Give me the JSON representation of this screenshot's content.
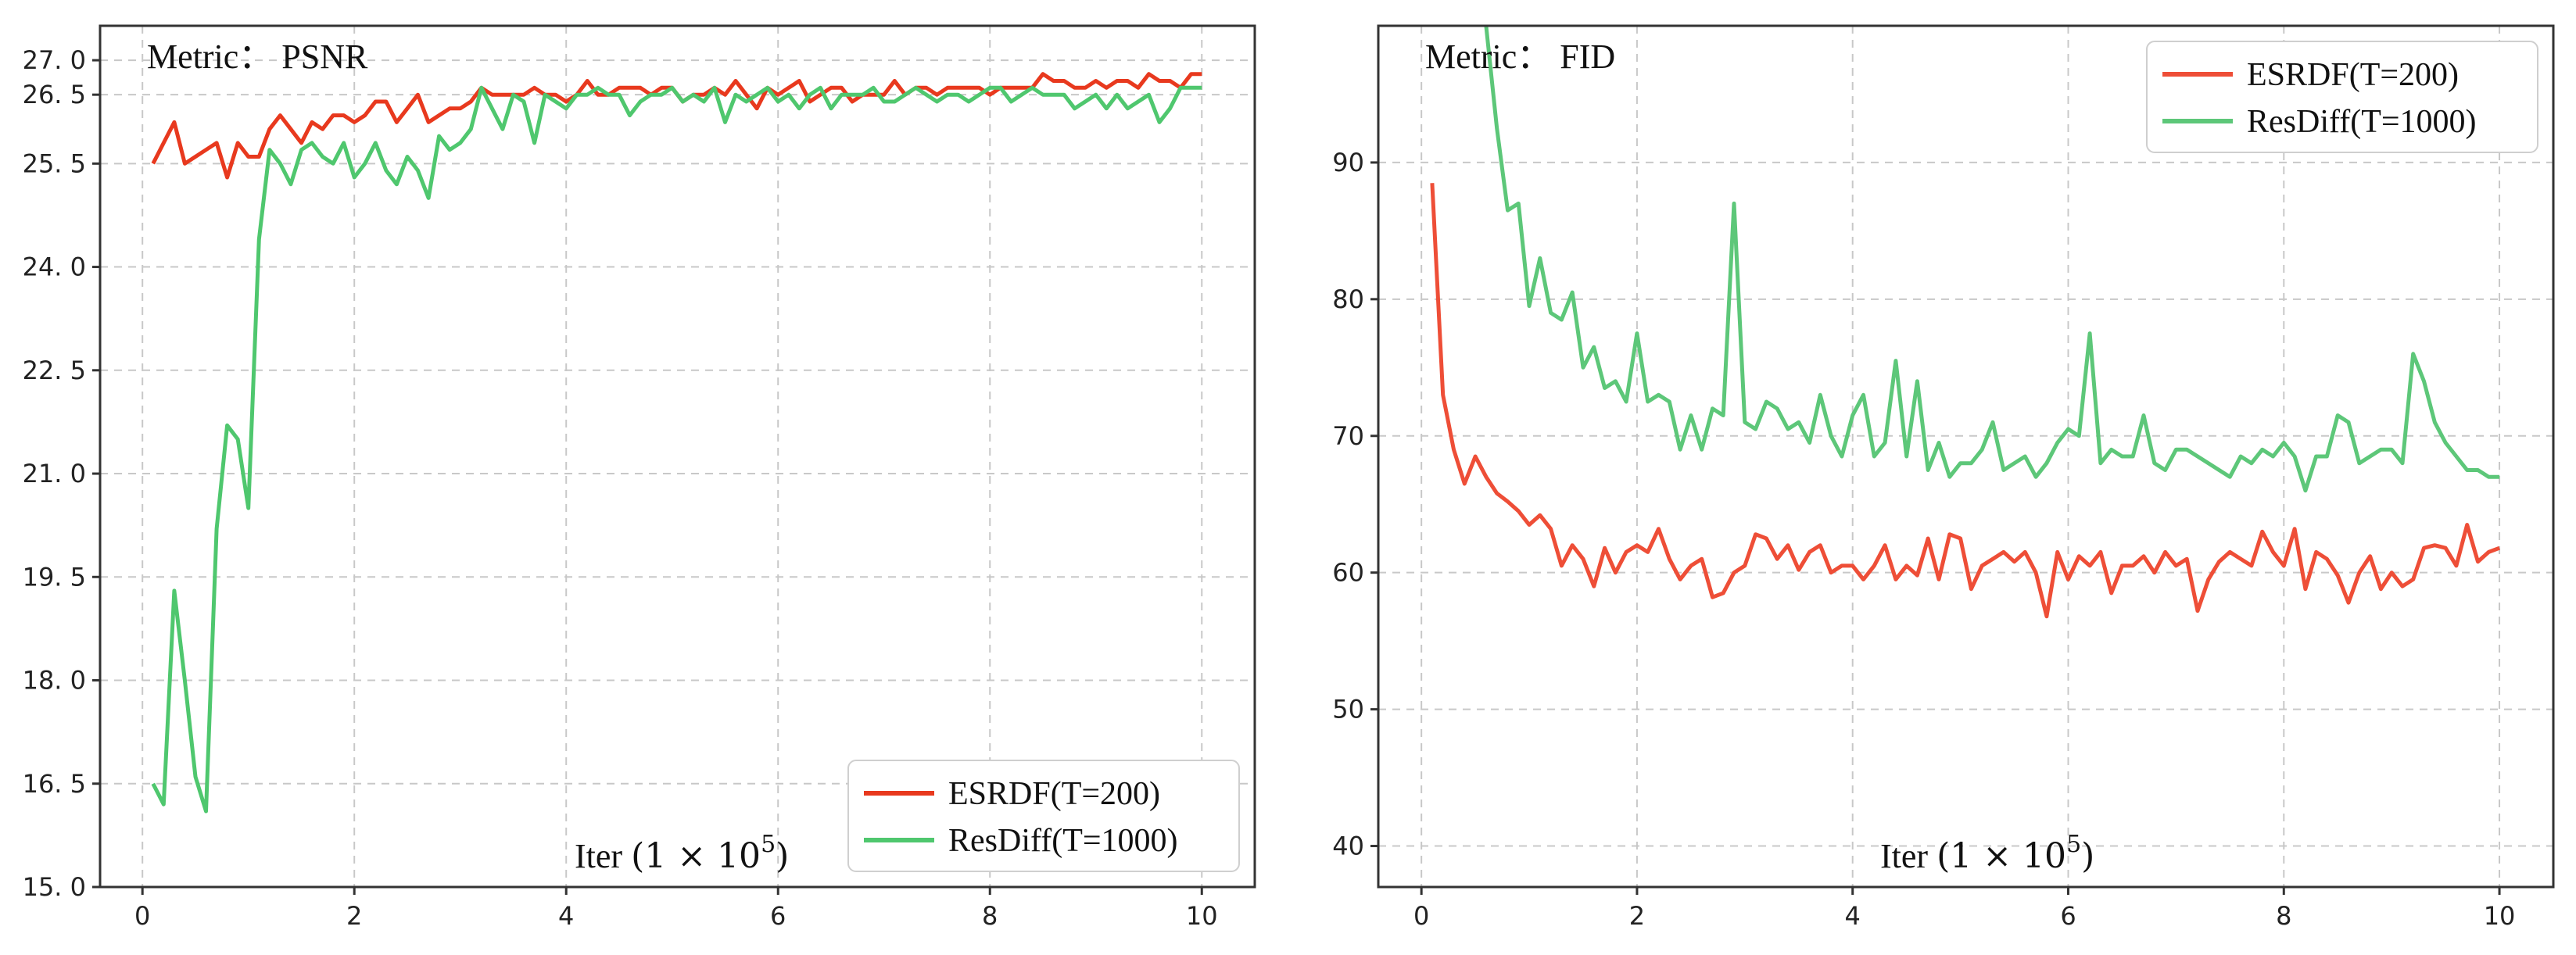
{
  "chart_data": [
    {
      "type": "line",
      "annotation": "Metric： PSNR",
      "xlabel_text": "Iter ",
      "xlabel_math": "(1 × 10",
      "xlabel_exp": "5",
      "xlabel_close": ")",
      "xlim": [
        -0.4,
        10.5
      ],
      "ylim": [
        15.0,
        27.5
      ],
      "xticks": [
        0,
        2,
        4,
        6,
        8,
        10
      ],
      "yticks": [
        15.0,
        16.5,
        18.0,
        19.5,
        21.0,
        22.5,
        24.0,
        25.5,
        26.5,
        27.0
      ],
      "ytick_labels": [
        "15. 0",
        "16. 5",
        "18. 0",
        "19. 5",
        "21. 0",
        "22. 5",
        "24. 0",
        "25. 5",
        "26. 5",
        "27. 0"
      ],
      "grid": true,
      "legend_position": "lower-right",
      "series": [
        {
          "name": "ESRDF(T=200)",
          "color": "#e8391e",
          "x": [
            0.1,
            0.2,
            0.3,
            0.4,
            0.5,
            0.6,
            0.7,
            0.8,
            0.9,
            1.0,
            1.1,
            1.2,
            1.3,
            1.4,
            1.5,
            1.6,
            1.7,
            1.8,
            1.9,
            2.0,
            2.1,
            2.2,
            2.3,
            2.4,
            2.5,
            2.6,
            2.7,
            2.8,
            2.9,
            3.0,
            3.1,
            3.2,
            3.3,
            3.4,
            3.5,
            3.6,
            3.7,
            3.8,
            3.9,
            4.0,
            4.1,
            4.2,
            4.3,
            4.4,
            4.5,
            4.6,
            4.7,
            4.8,
            4.9,
            5.0,
            5.1,
            5.2,
            5.3,
            5.4,
            5.5,
            5.6,
            5.7,
            5.8,
            5.9,
            6.0,
            6.1,
            6.2,
            6.3,
            6.4,
            6.5,
            6.6,
            6.7,
            6.8,
            6.9,
            7.0,
            7.1,
            7.2,
            7.3,
            7.4,
            7.5,
            7.6,
            7.7,
            7.8,
            7.9,
            8.0,
            8.1,
            8.2,
            8.3,
            8.4,
            8.5,
            8.6,
            8.7,
            8.8,
            8.9,
            9.0,
            9.1,
            9.2,
            9.3,
            9.4,
            9.5,
            9.6,
            9.7,
            9.8,
            9.9,
            10.0
          ],
          "values": [
            25.5,
            25.8,
            26.1,
            25.5,
            25.6,
            25.7,
            25.8,
            25.3,
            25.8,
            25.6,
            25.6,
            26.0,
            26.2,
            26.0,
            25.8,
            26.1,
            26.0,
            26.2,
            26.2,
            26.1,
            26.2,
            26.4,
            26.4,
            26.1,
            26.3,
            26.5,
            26.1,
            26.2,
            26.3,
            26.3,
            26.4,
            26.6,
            26.5,
            26.5,
            26.5,
            26.5,
            26.6,
            26.5,
            26.5,
            26.4,
            26.5,
            26.7,
            26.5,
            26.5,
            26.6,
            26.6,
            26.6,
            26.5,
            26.6,
            26.6,
            26.4,
            26.5,
            26.5,
            26.6,
            26.5,
            26.7,
            26.5,
            26.3,
            26.6,
            26.5,
            26.6,
            26.7,
            26.4,
            26.5,
            26.6,
            26.6,
            26.4,
            26.5,
            26.5,
            26.5,
            26.7,
            26.5,
            26.6,
            26.6,
            26.5,
            26.6,
            26.6,
            26.6,
            26.6,
            26.5,
            26.6,
            26.6,
            26.6,
            26.6,
            26.8,
            26.7,
            26.7,
            26.6,
            26.6,
            26.7,
            26.6,
            26.7,
            26.7,
            26.6,
            26.8,
            26.7,
            26.7,
            26.6,
            26.8,
            26.8
          ]
        },
        {
          "name": "ResDiff(T=1000)",
          "color": "#4fc76e",
          "x": [
            0.1,
            0.2,
            0.3,
            0.4,
            0.5,
            0.6,
            0.7,
            0.8,
            0.9,
            1.0,
            1.1,
            1.2,
            1.3,
            1.4,
            1.5,
            1.6,
            1.7,
            1.8,
            1.9,
            2.0,
            2.1,
            2.2,
            2.3,
            2.4,
            2.5,
            2.6,
            2.7,
            2.8,
            2.9,
            3.0,
            3.1,
            3.2,
            3.3,
            3.4,
            3.5,
            3.6,
            3.7,
            3.8,
            3.9,
            4.0,
            4.1,
            4.2,
            4.3,
            4.4,
            4.5,
            4.6,
            4.7,
            4.8,
            4.9,
            5.0,
            5.1,
            5.2,
            5.3,
            5.4,
            5.5,
            5.6,
            5.7,
            5.8,
            5.9,
            6.0,
            6.1,
            6.2,
            6.3,
            6.4,
            6.5,
            6.6,
            6.7,
            6.8,
            6.9,
            7.0,
            7.1,
            7.2,
            7.3,
            7.4,
            7.5,
            7.6,
            7.7,
            7.8,
            7.9,
            8.0,
            8.1,
            8.2,
            8.3,
            8.4,
            8.5,
            8.6,
            8.7,
            8.8,
            8.9,
            9.0,
            9.1,
            9.2,
            9.3,
            9.4,
            9.5,
            9.6,
            9.7,
            9.8,
            9.9,
            10.0
          ],
          "values": [
            16.5,
            16.2,
            19.3,
            18.0,
            16.6,
            16.1,
            20.2,
            21.7,
            21.5,
            20.5,
            24.4,
            25.7,
            25.5,
            25.2,
            25.7,
            25.8,
            25.6,
            25.5,
            25.8,
            25.3,
            25.5,
            25.8,
            25.4,
            25.2,
            25.6,
            25.4,
            25.0,
            25.9,
            25.7,
            25.8,
            26.0,
            26.6,
            26.3,
            26.0,
            26.5,
            26.4,
            25.8,
            26.5,
            26.4,
            26.3,
            26.5,
            26.5,
            26.6,
            26.5,
            26.5,
            26.2,
            26.4,
            26.5,
            26.5,
            26.6,
            26.4,
            26.5,
            26.4,
            26.6,
            26.1,
            26.5,
            26.4,
            26.5,
            26.6,
            26.4,
            26.5,
            26.3,
            26.5,
            26.6,
            26.3,
            26.5,
            26.5,
            26.5,
            26.6,
            26.4,
            26.4,
            26.5,
            26.6,
            26.5,
            26.4,
            26.5,
            26.5,
            26.4,
            26.5,
            26.6,
            26.6,
            26.4,
            26.5,
            26.6,
            26.5,
            26.5,
            26.5,
            26.3,
            26.4,
            26.5,
            26.3,
            26.5,
            26.3,
            26.4,
            26.5,
            26.1,
            26.3,
            26.6,
            26.6,
            26.6
          ]
        }
      ]
    },
    {
      "type": "line",
      "annotation": "Metric： FID",
      "xlabel_text": "Iter ",
      "xlabel_math": "(1 × 10",
      "xlabel_exp": "5",
      "xlabel_close": ")",
      "xlim": [
        -0.4,
        10.5
      ],
      "ylim": [
        37,
        100
      ],
      "xticks": [
        0,
        2,
        4,
        6,
        8,
        10
      ],
      "yticks": [
        40,
        50,
        60,
        70,
        80,
        90
      ],
      "ytick_labels": [
        "40",
        "50",
        "60",
        "70",
        "80",
        "90"
      ],
      "grid": true,
      "legend_position": "upper-right",
      "series": [
        {
          "name": "ESRDF(T=200)",
          "color": "#ee4e37",
          "x": [
            0.1,
            0.2,
            0.3,
            0.4,
            0.5,
            0.6,
            0.7,
            0.8,
            0.9,
            1.0,
            1.1,
            1.2,
            1.3,
            1.4,
            1.5,
            1.6,
            1.7,
            1.8,
            1.9,
            2.0,
            2.1,
            2.2,
            2.3,
            2.4,
            2.5,
            2.6,
            2.7,
            2.8,
            2.9,
            3.0,
            3.1,
            3.2,
            3.3,
            3.4,
            3.5,
            3.6,
            3.7,
            3.8,
            3.9,
            4.0,
            4.1,
            4.2,
            4.3,
            4.4,
            4.5,
            4.6,
            4.7,
            4.8,
            4.9,
            5.0,
            5.1,
            5.2,
            5.3,
            5.4,
            5.5,
            5.6,
            5.7,
            5.8,
            5.9,
            6.0,
            6.1,
            6.2,
            6.3,
            6.4,
            6.5,
            6.6,
            6.7,
            6.8,
            6.9,
            7.0,
            7.1,
            7.2,
            7.3,
            7.4,
            7.5,
            7.6,
            7.7,
            7.8,
            7.9,
            8.0,
            8.1,
            8.2,
            8.3,
            8.4,
            8.5,
            8.6,
            8.7,
            8.8,
            8.9,
            9.0,
            9.1,
            9.2,
            9.3,
            9.4,
            9.5,
            9.6,
            9.7,
            9.8,
            9.9,
            10.0
          ],
          "values": [
            88.5,
            73.0,
            69.0,
            66.5,
            68.5,
            67.0,
            65.8,
            65.2,
            64.5,
            63.5,
            64.2,
            63.2,
            60.5,
            62.0,
            61.0,
            59.0,
            61.8,
            60.0,
            61.5,
            62.0,
            61.5,
            63.2,
            61.0,
            59.5,
            60.5,
            61.0,
            58.2,
            58.5,
            60.0,
            60.5,
            62.8,
            62.5,
            61.0,
            62.0,
            60.2,
            61.5,
            62.0,
            60.0,
            60.5,
            60.5,
            59.5,
            60.5,
            62.0,
            59.5,
            60.5,
            59.8,
            62.5,
            59.5,
            62.8,
            62.5,
            58.8,
            60.5,
            61.0,
            61.5,
            60.8,
            61.5,
            60.0,
            56.8,
            61.5,
            59.5,
            61.2,
            60.5,
            61.5,
            58.5,
            60.5,
            60.5,
            61.2,
            60.0,
            61.5,
            60.5,
            61.0,
            57.2,
            59.5,
            60.8,
            61.5,
            61.0,
            60.5,
            63.0,
            61.5,
            60.5,
            63.2,
            58.8,
            61.5,
            61.0,
            59.8,
            57.8,
            60.0,
            61.2,
            58.8,
            60.0,
            59.0,
            59.5,
            61.8,
            62.0,
            61.8,
            60.5,
            63.5,
            60.8,
            61.5,
            61.8
          ]
        },
        {
          "name": "ResDiff(T=1000)",
          "color": "#5dc779",
          "x": [
            0.6,
            0.7,
            0.8,
            0.9,
            1.0,
            1.1,
            1.2,
            1.3,
            1.4,
            1.5,
            1.6,
            1.7,
            1.8,
            1.9,
            2.0,
            2.1,
            2.2,
            2.3,
            2.4,
            2.5,
            2.6,
            2.7,
            2.8,
            2.9,
            3.0,
            3.1,
            3.2,
            3.3,
            3.4,
            3.5,
            3.6,
            3.7,
            3.8,
            3.9,
            4.0,
            4.1,
            4.2,
            4.3,
            4.4,
            4.5,
            4.6,
            4.7,
            4.8,
            4.9,
            5.0,
            5.1,
            5.2,
            5.3,
            5.4,
            5.5,
            5.6,
            5.7,
            5.8,
            5.9,
            6.0,
            6.1,
            6.2,
            6.3,
            6.4,
            6.5,
            6.6,
            6.7,
            6.8,
            6.9,
            7.0,
            7.1,
            7.2,
            7.3,
            7.4,
            7.5,
            7.6,
            7.7,
            7.8,
            7.9,
            8.0,
            8.1,
            8.2,
            8.3,
            8.4,
            8.5,
            8.6,
            8.7,
            8.8,
            8.9,
            9.0,
            9.1,
            9.2,
            9.3,
            9.4,
            9.5,
            9.6,
            9.7,
            9.8,
            9.9,
            10.0
          ],
          "values": [
            100.0,
            92.5,
            86.5,
            87.0,
            79.5,
            83.0,
            79.0,
            78.5,
            80.5,
            75.0,
            76.5,
            73.5,
            74.0,
            72.5,
            77.5,
            72.5,
            73.0,
            72.5,
            69.0,
            71.5,
            69.0,
            72.0,
            71.5,
            87.0,
            71.0,
            70.5,
            72.5,
            72.0,
            70.5,
            71.0,
            69.5,
            73.0,
            70.0,
            68.5,
            71.5,
            73.0,
            68.5,
            69.5,
            75.5,
            68.5,
            74.0,
            67.5,
            69.5,
            67.0,
            68.0,
            68.0,
            69.0,
            71.0,
            67.5,
            68.0,
            68.5,
            67.0,
            68.0,
            69.5,
            70.5,
            70.0,
            77.5,
            68.0,
            69.0,
            68.5,
            68.5,
            71.5,
            68.0,
            67.5,
            69.0,
            69.0,
            68.5,
            68.0,
            67.5,
            67.0,
            68.5,
            68.0,
            69.0,
            68.5,
            69.5,
            68.5,
            66.0,
            68.5,
            68.5,
            71.5,
            71.0,
            68.0,
            68.5,
            69.0,
            69.0,
            68.0,
            76.0,
            74.0,
            71.0,
            69.5,
            68.5,
            67.5,
            67.5,
            67.0,
            67.0
          ]
        }
      ]
    }
  ]
}
